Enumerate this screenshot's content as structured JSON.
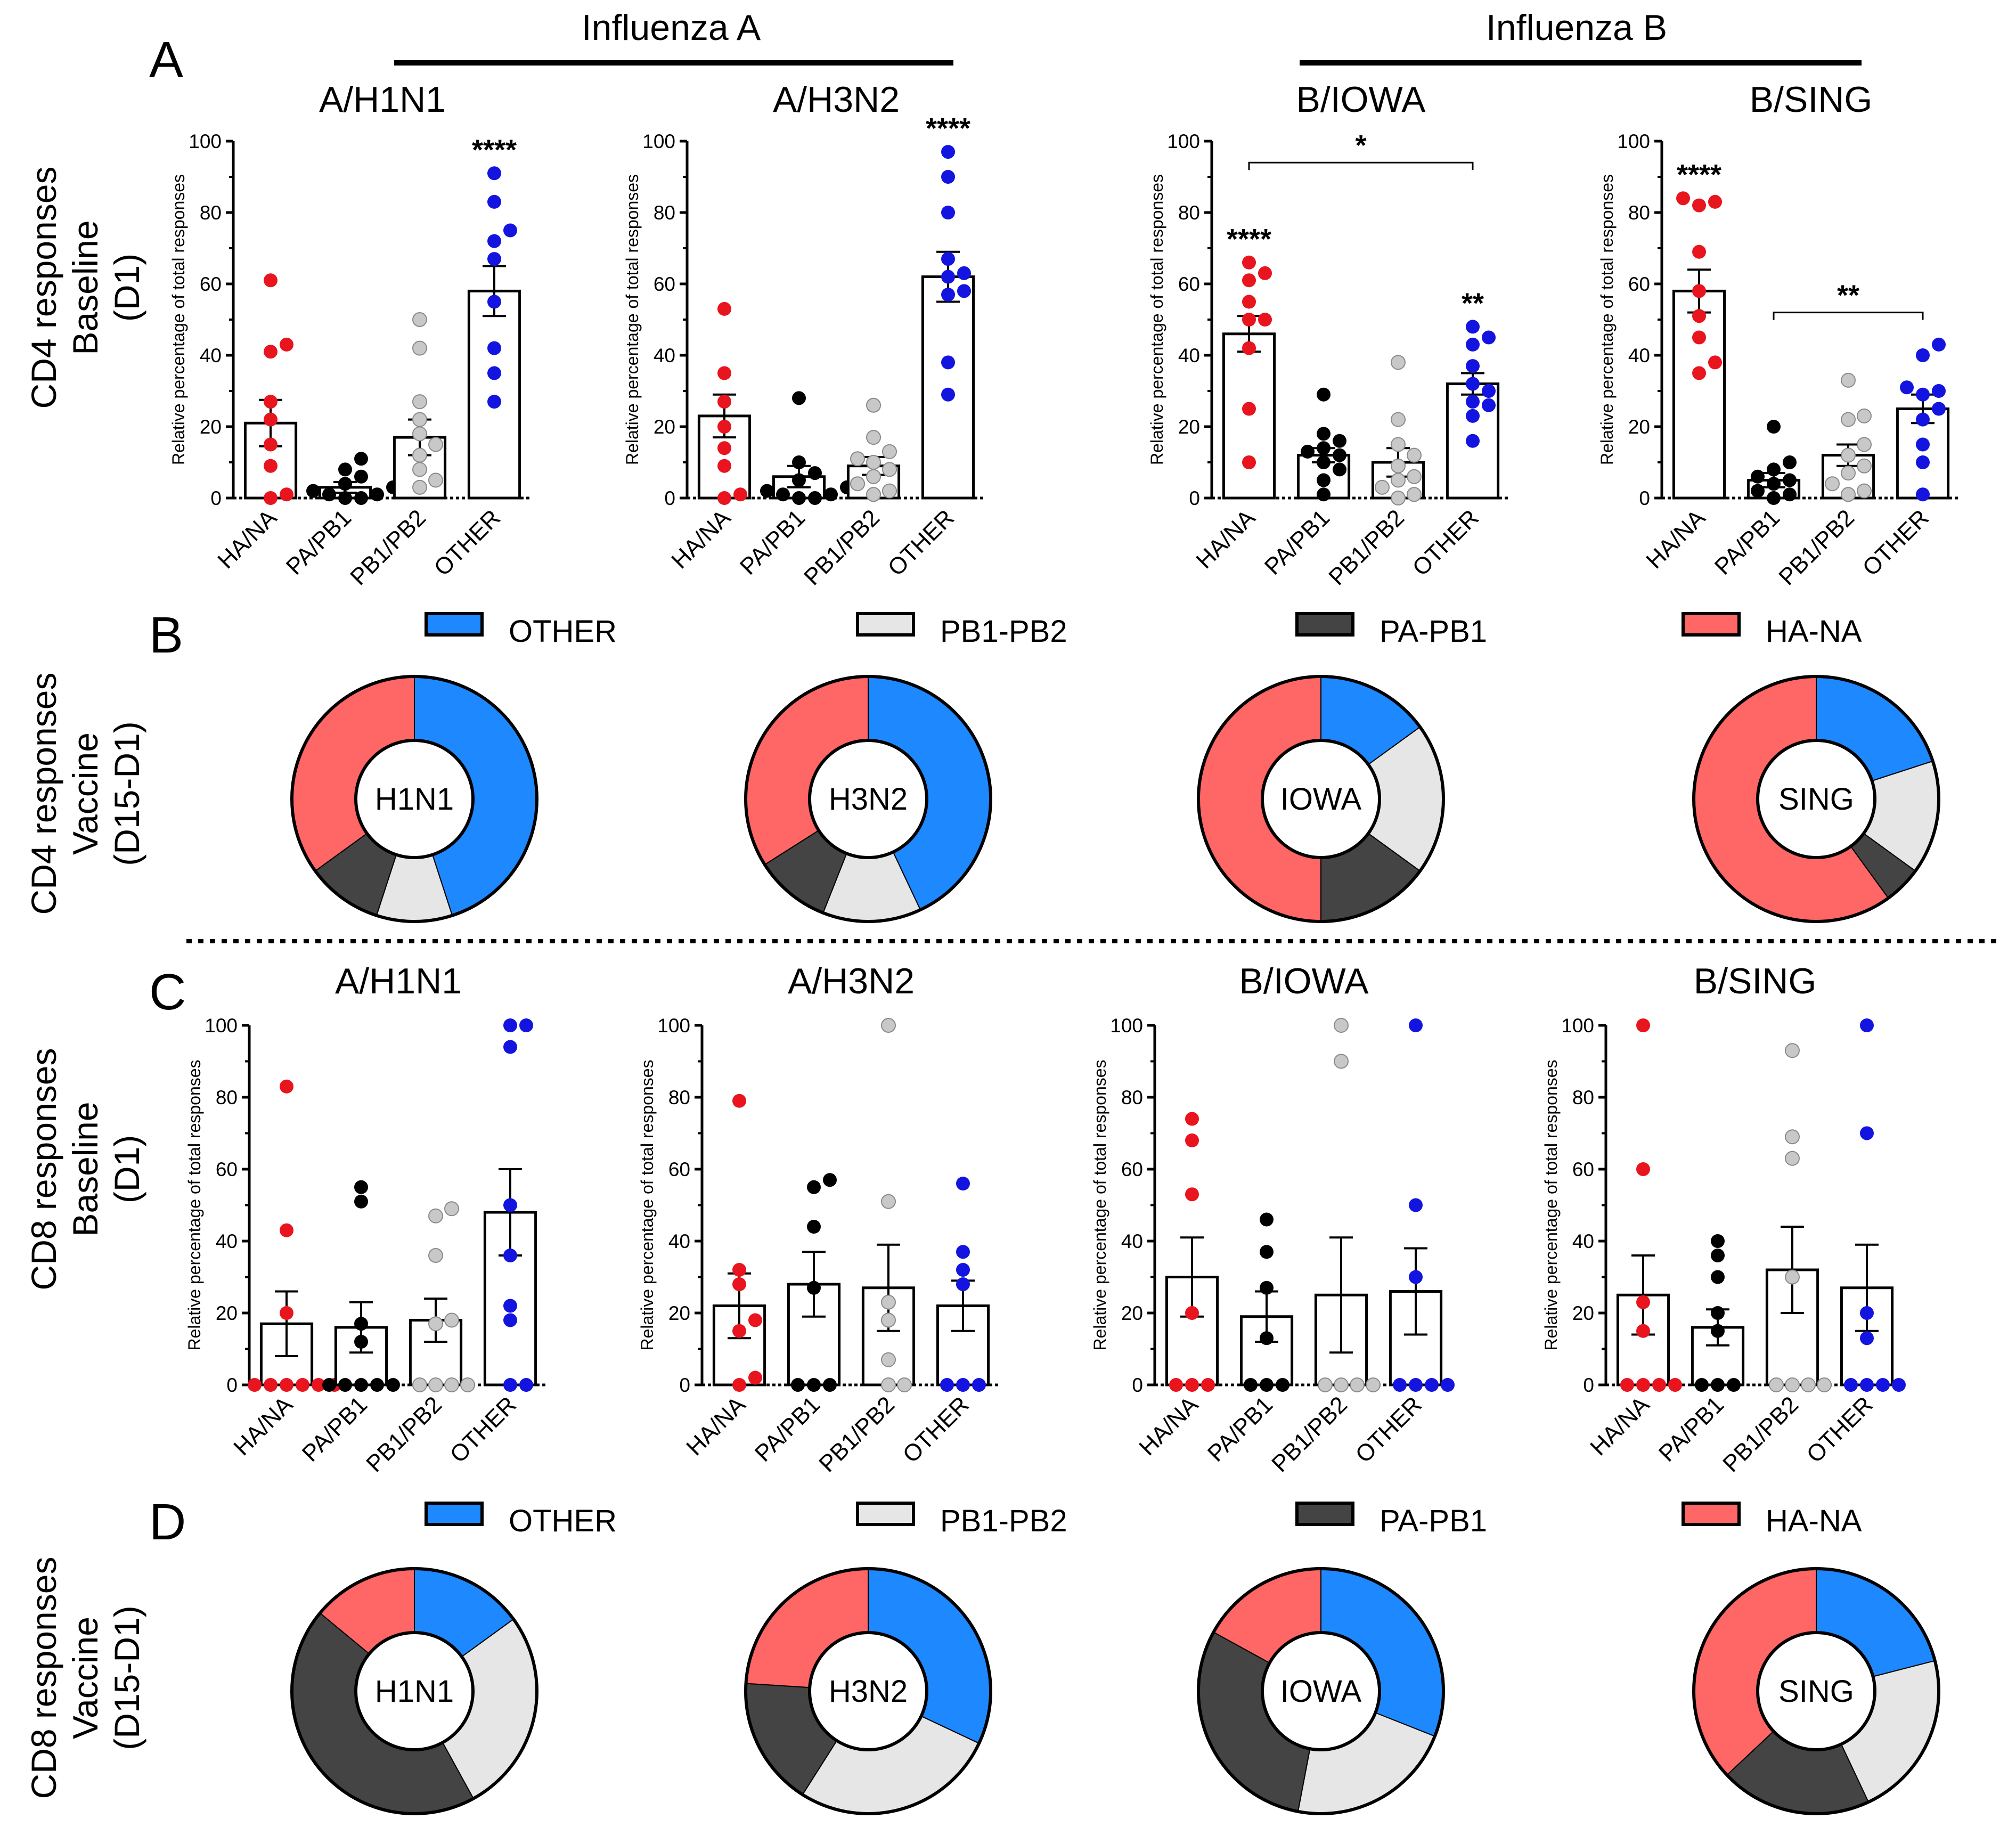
{
  "panel_letters": [
    "A",
    "B",
    "C",
    "D"
  ],
  "row_labels": [
    [
      "CD4 responses",
      "Baseline",
      "(D1)"
    ],
    [
      "CD4 responses",
      "Vaccine",
      "(D15-D1)"
    ],
    [
      "CD8 responses",
      "Baseline",
      "(D1)"
    ],
    [
      "CD8 responses",
      "Vaccine",
      "(D15-D1)"
    ]
  ],
  "flu_groups": [
    "Influenza A",
    "Influenza B"
  ],
  "legend": [
    {
      "label": "OTHER",
      "color": "#1e88ff"
    },
    {
      "label": "PB1-PB2",
      "color": "#e6e6e6"
    },
    {
      "label": "PA-PB1",
      "color": "#444444"
    },
    {
      "label": "HA-NA",
      "color": "#ff6666"
    }
  ],
  "colors": {
    "dot_red": "#e8141e",
    "dot_black": "#000000",
    "dot_grey": "#c8c8c8",
    "dot_blue": "#1414e0",
    "donut_blue": "#1e88ff",
    "donut_lightgrey": "#e6e6e6",
    "donut_darkgrey": "#444444",
    "donut_red": "#ff6666"
  },
  "chart_data": [
    {
      "type": "bar",
      "panel": "A",
      "title": "A/H1N1",
      "ylabel": "Relative percentage of total responses",
      "categories": [
        "HA/NA",
        "PA/PB1",
        "PB1/PB2",
        "OTHER"
      ],
      "ylim": [
        0,
        100
      ],
      "yticks": [
        "0",
        "20",
        "40",
        "60",
        "80",
        "100"
      ],
      "means": [
        21,
        3,
        17,
        58
      ],
      "sems": [
        6.5,
        1.5,
        5,
        7
      ],
      "points": [
        [
          61,
          43,
          41,
          27,
          22,
          15,
          9,
          1,
          0
        ],
        [
          11,
          8,
          6,
          4,
          3,
          2,
          1,
          1,
          0,
          0
        ],
        [
          50,
          42,
          27,
          22,
          18,
          15,
          12,
          8,
          5,
          3
        ],
        [
          91,
          83,
          75,
          72,
          67,
          55,
          42,
          35,
          27
        ]
      ],
      "annotations": [
        {
          "category": "OTHER",
          "text": "****"
        }
      ],
      "brackets": []
    },
    {
      "type": "bar",
      "panel": "A",
      "title": "A/H3N2",
      "ylabel": "Relative percentage of total responses",
      "categories": [
        "HA/NA",
        "PA/PB1",
        "PB1/PB2",
        "OTHER"
      ],
      "ylim": [
        0,
        100
      ],
      "yticks": [
        "0",
        "20",
        "40",
        "60",
        "80",
        "100"
      ],
      "means": [
        23,
        6,
        9,
        62
      ],
      "sems": [
        6,
        3,
        2.5,
        7
      ],
      "points": [
        [
          53,
          35,
          27,
          20,
          14,
          9,
          1,
          0
        ],
        [
          28,
          10,
          7,
          5,
          3,
          2,
          1,
          1,
          0,
          0
        ],
        [
          26,
          17,
          13,
          11,
          10,
          8,
          6,
          4,
          2,
          1
        ],
        [
          97,
          90,
          80,
          67,
          63,
          62,
          58,
          57,
          38,
          29
        ]
      ],
      "annotations": [
        {
          "category": "OTHER",
          "text": "****"
        }
      ],
      "brackets": []
    },
    {
      "type": "bar",
      "panel": "A",
      "title": "B/IOWA",
      "ylabel": "Relative percentage of total responses",
      "categories": [
        "HA/NA",
        "PA/PB1",
        "PB1/PB2",
        "OTHER"
      ],
      "ylim": [
        0,
        100
      ],
      "yticks": [
        "0",
        "20",
        "40",
        "60",
        "80",
        "100"
      ],
      "means": [
        46,
        12,
        10,
        32
      ],
      "sems": [
        5,
        2,
        4,
        3
      ],
      "points": [
        [
          66,
          63,
          61,
          55,
          50,
          50,
          42,
          25,
          10
        ],
        [
          29,
          18,
          16,
          14,
          13,
          12,
          10,
          8,
          5,
          1
        ],
        [
          38,
          22,
          15,
          12,
          9,
          6,
          5,
          3,
          1,
          0
        ],
        [
          48,
          45,
          43,
          37,
          32,
          30,
          27,
          26,
          23,
          16
        ]
      ],
      "annotations": [
        {
          "category": "HA/NA",
          "text": "****"
        },
        {
          "category": "OTHER",
          "text": "**"
        }
      ],
      "brackets": [
        {
          "from": "HA/NA",
          "to": "OTHER",
          "text": "*",
          "y": 94
        }
      ]
    },
    {
      "type": "bar",
      "panel": "A",
      "title": "B/SING",
      "ylabel": "Relative percentage of total responses",
      "categories": [
        "HA/NA",
        "PA/PB1",
        "PB1/PB2",
        "OTHER"
      ],
      "ylim": [
        0,
        100
      ],
      "yticks": [
        "0",
        "20",
        "40",
        "60",
        "80",
        "100"
      ],
      "means": [
        58,
        5,
        12,
        25
      ],
      "sems": [
        6,
        2,
        3,
        4
      ],
      "points": [
        [
          84,
          83,
          82,
          69,
          58,
          51,
          45,
          38,
          35
        ],
        [
          20,
          10,
          8,
          6,
          5,
          4,
          2,
          1,
          0
        ],
        [
          33,
          23,
          22,
          15,
          12,
          9,
          7,
          4,
          2,
          1
        ],
        [
          43,
          40,
          31,
          30,
          29,
          25,
          22,
          15,
          10,
          1
        ]
      ],
      "annotations": [
        {
          "category": "HA/NA",
          "text": "****"
        }
      ],
      "brackets": [
        {
          "from": "PA/PB1",
          "to": "OTHER",
          "text": "**",
          "y": 52
        }
      ]
    },
    {
      "type": "pie",
      "panel": "B",
      "subtype": "donut",
      "center_label": "H1N1",
      "slices": [
        {
          "label": "OTHER",
          "value": 45
        },
        {
          "label": "PB1-PB2",
          "value": 10
        },
        {
          "label": "PA-PB1",
          "value": 10
        },
        {
          "label": "HA-NA",
          "value": 35
        }
      ]
    },
    {
      "type": "pie",
      "panel": "B",
      "subtype": "donut",
      "center_label": "H3N2",
      "slices": [
        {
          "label": "OTHER",
          "value": 43
        },
        {
          "label": "PB1-PB2",
          "value": 13
        },
        {
          "label": "PA-PB1",
          "value": 10
        },
        {
          "label": "HA-NA",
          "value": 34
        }
      ]
    },
    {
      "type": "pie",
      "panel": "B",
      "subtype": "donut",
      "center_label": "IOWA",
      "slices": [
        {
          "label": "OTHER",
          "value": 15
        },
        {
          "label": "PB1-PB2",
          "value": 20
        },
        {
          "label": "PA-PB1",
          "value": 15
        },
        {
          "label": "HA-NA",
          "value": 50
        }
      ]
    },
    {
      "type": "pie",
      "panel": "B",
      "subtype": "donut",
      "center_label": "SING",
      "slices": [
        {
          "label": "OTHER",
          "value": 20
        },
        {
          "label": "PB1-PB2",
          "value": 15
        },
        {
          "label": "PA-PB1",
          "value": 5
        },
        {
          "label": "HA-NA",
          "value": 60
        }
      ]
    },
    {
      "type": "bar",
      "panel": "C",
      "title": "A/H1N1",
      "ylabel": "Relative percentage of total responses",
      "categories": [
        "HA/NA",
        "PA/PB1",
        "PB1/PB2",
        "OTHER"
      ],
      "ylim": [
        0,
        100
      ],
      "yticks": [
        "0",
        "20",
        "40",
        "60",
        "80",
        "100"
      ],
      "means": [
        17,
        16,
        18,
        48
      ],
      "sems": [
        9,
        7,
        6,
        12
      ],
      "points": [
        [
          83,
          43,
          20,
          0,
          0,
          0,
          0,
          0,
          0
        ],
        [
          55,
          51,
          17,
          12,
          0,
          0,
          0,
          0,
          0
        ],
        [
          49,
          47,
          36,
          18,
          17,
          0,
          0,
          0,
          0
        ],
        [
          100,
          100,
          94,
          50,
          36,
          22,
          18,
          0,
          0
        ]
      ],
      "annotations": [],
      "brackets": []
    },
    {
      "type": "bar",
      "panel": "C",
      "title": "A/H3N2",
      "ylabel": "Relative percentage of total responses",
      "categories": [
        "HA/NA",
        "PA/PB1",
        "PB1/PB2",
        "OTHER"
      ],
      "ylim": [
        0,
        100
      ],
      "yticks": [
        "0",
        "20",
        "40",
        "60",
        "80",
        "100"
      ],
      "means": [
        22,
        28,
        27,
        22
      ],
      "sems": [
        9,
        9,
        12,
        7
      ],
      "points": [
        [
          79,
          32,
          28,
          18,
          15,
          2,
          0
        ],
        [
          57,
          55,
          44,
          27,
          0,
          0,
          0
        ],
        [
          100,
          51,
          23,
          18,
          7,
          0,
          0
        ],
        [
          56,
          37,
          32,
          28,
          0,
          0,
          0
        ]
      ],
      "annotations": [],
      "brackets": []
    },
    {
      "type": "bar",
      "panel": "C",
      "title": "B/IOWA",
      "ylabel": "Relative percentage of total responses",
      "categories": [
        "HA/NA",
        "PA/PB1",
        "PB1/PB2",
        "OTHER"
      ],
      "ylim": [
        0,
        100
      ],
      "yticks": [
        "0",
        "20",
        "40",
        "60",
        "80",
        "100"
      ],
      "means": [
        30,
        19,
        25,
        26
      ],
      "sems": [
        11,
        7,
        16,
        12
      ],
      "points": [
        [
          74,
          68,
          53,
          20,
          0,
          0,
          0
        ],
        [
          46,
          37,
          27,
          13,
          0,
          0,
          0
        ],
        [
          100,
          90,
          0,
          0,
          0,
          0
        ],
        [
          100,
          50,
          30,
          0,
          0,
          0,
          0
        ]
      ],
      "annotations": [],
      "brackets": []
    },
    {
      "type": "bar",
      "panel": "C",
      "title": "B/SING",
      "ylabel": "Relative percentage of total responses",
      "categories": [
        "HA/NA",
        "PA/PB1",
        "PB1/PB2",
        "OTHER"
      ],
      "ylim": [
        0,
        100
      ],
      "yticks": [
        "0",
        "20",
        "40",
        "60",
        "80",
        "100"
      ],
      "means": [
        25,
        16,
        32,
        27
      ],
      "sems": [
        11,
        5,
        12,
        12
      ],
      "points": [
        [
          100,
          60,
          23,
          15,
          0,
          0,
          0,
          0
        ],
        [
          40,
          36,
          30,
          20,
          15,
          0,
          0,
          0
        ],
        [
          93,
          69,
          63,
          30,
          0,
          0,
          0,
          0
        ],
        [
          100,
          70,
          20,
          13,
          0,
          0,
          0,
          0
        ]
      ],
      "annotations": [],
      "brackets": []
    },
    {
      "type": "pie",
      "panel": "D",
      "subtype": "donut",
      "center_label": "H1N1",
      "slices": [
        {
          "label": "OTHER",
          "value": 15
        },
        {
          "label": "PB1-PB2",
          "value": 27
        },
        {
          "label": "PA-PB1",
          "value": 44
        },
        {
          "label": "HA-NA",
          "value": 14
        }
      ]
    },
    {
      "type": "pie",
      "panel": "D",
      "subtype": "donut",
      "center_label": "H3N2",
      "slices": [
        {
          "label": "OTHER",
          "value": 32
        },
        {
          "label": "PB1-PB2",
          "value": 27
        },
        {
          "label": "PA-PB1",
          "value": 17
        },
        {
          "label": "HA-NA",
          "value": 24
        }
      ]
    },
    {
      "type": "pie",
      "panel": "D",
      "subtype": "donut",
      "center_label": "IOWA",
      "slices": [
        {
          "label": "OTHER",
          "value": 31
        },
        {
          "label": "PB1-PB2",
          "value": 22
        },
        {
          "label": "PA-PB1",
          "value": 30
        },
        {
          "label": "HA-NA",
          "value": 17
        }
      ]
    },
    {
      "type": "pie",
      "panel": "D",
      "subtype": "donut",
      "center_label": "SING",
      "slices": [
        {
          "label": "OTHER",
          "value": 21
        },
        {
          "label": "PB1-PB2",
          "value": 22
        },
        {
          "label": "PA-PB1",
          "value": 20
        },
        {
          "label": "HA-NA",
          "value": 37
        }
      ]
    }
  ]
}
